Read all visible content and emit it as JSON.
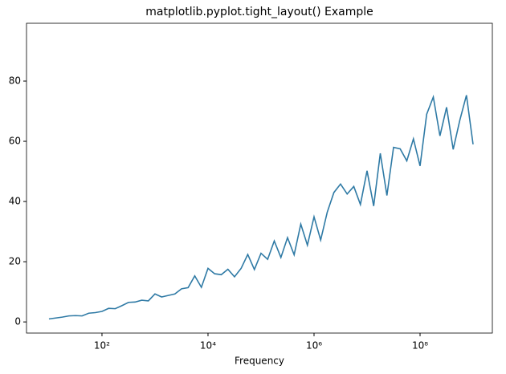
{
  "chart_data": {
    "type": "line",
    "title": "matplotlib.pyplot.tight_layout() Example",
    "xlabel": "Frequency",
    "xscale": "log",
    "x": [
      10.0,
      13.335,
      17.783,
      23.714,
      31.623,
      42.17,
      56.234,
      74.989,
      100.0,
      133.35,
      177.83,
      237.14,
      316.23,
      421.7,
      562.34,
      749.89,
      1000.0,
      1333.5,
      1778.3,
      2371.4,
      3162.3,
      4217.0,
      5623.4,
      7498.9,
      10000.0,
      13335.0,
      17783.0,
      23714.0,
      31623.0,
      42170.0,
      56234.0,
      74989.0,
      100000.0,
      133350.0,
      177830.0,
      237140.0,
      316230.0,
      421700.0,
      562340.0,
      749890.0,
      1000000.0,
      1333500.0,
      1778300.0,
      2371400.0,
      3162300.0,
      4217000.0,
      5623400.0,
      7498900.0,
      10000000.0,
      13335000.0,
      17783000.0,
      23714000.0,
      31623000.0,
      42170000.0,
      56234000.0,
      74989000.0,
      100000000.0,
      133350000.0,
      177830000.0,
      237140000.0,
      316230000.0,
      421700000.0,
      562340000.0,
      749890000.0,
      1000000000.0
    ],
    "series": [
      {
        "color": "#2f7aa5",
        "values": [
          1.0,
          1.3,
          1.6,
          2.0,
          2.1,
          2.0,
          2.9,
          3.1,
          3.5,
          4.5,
          4.4,
          5.4,
          6.5,
          6.6,
          7.2,
          7.0,
          9.3,
          8.3,
          8.8,
          9.3,
          11.0,
          11.4,
          15.3,
          11.5,
          17.8,
          16.0,
          15.7,
          17.5,
          15.0,
          17.8,
          22.4,
          17.4,
          22.8,
          20.8,
          26.9,
          21.4,
          28.0,
          22.3,
          32.5,
          25.5,
          34.9,
          27.2,
          36.5,
          43.0,
          45.8,
          42.5,
          45.0,
          39.0,
          50.2,
          38.5,
          56.0,
          42.0,
          58.0,
          57.5,
          53.5,
          60.8,
          51.8,
          69.0,
          74.7,
          61.8,
          71.3,
          57.3,
          67.0,
          75.3,
          59.0
        ]
      }
    ],
    "xlim": [
      3.77,
      2310000000.0
    ],
    "xticks": [
      {
        "value": 100,
        "label": "10²"
      },
      {
        "value": 10000,
        "label": "10⁴"
      },
      {
        "value": 1000000,
        "label": "10⁶"
      },
      {
        "value": 100000000,
        "label": "10⁸"
      }
    ],
    "ylim": [
      -3.7,
      99.2
    ],
    "yticks": [
      0,
      20,
      40,
      60,
      80
    ]
  }
}
